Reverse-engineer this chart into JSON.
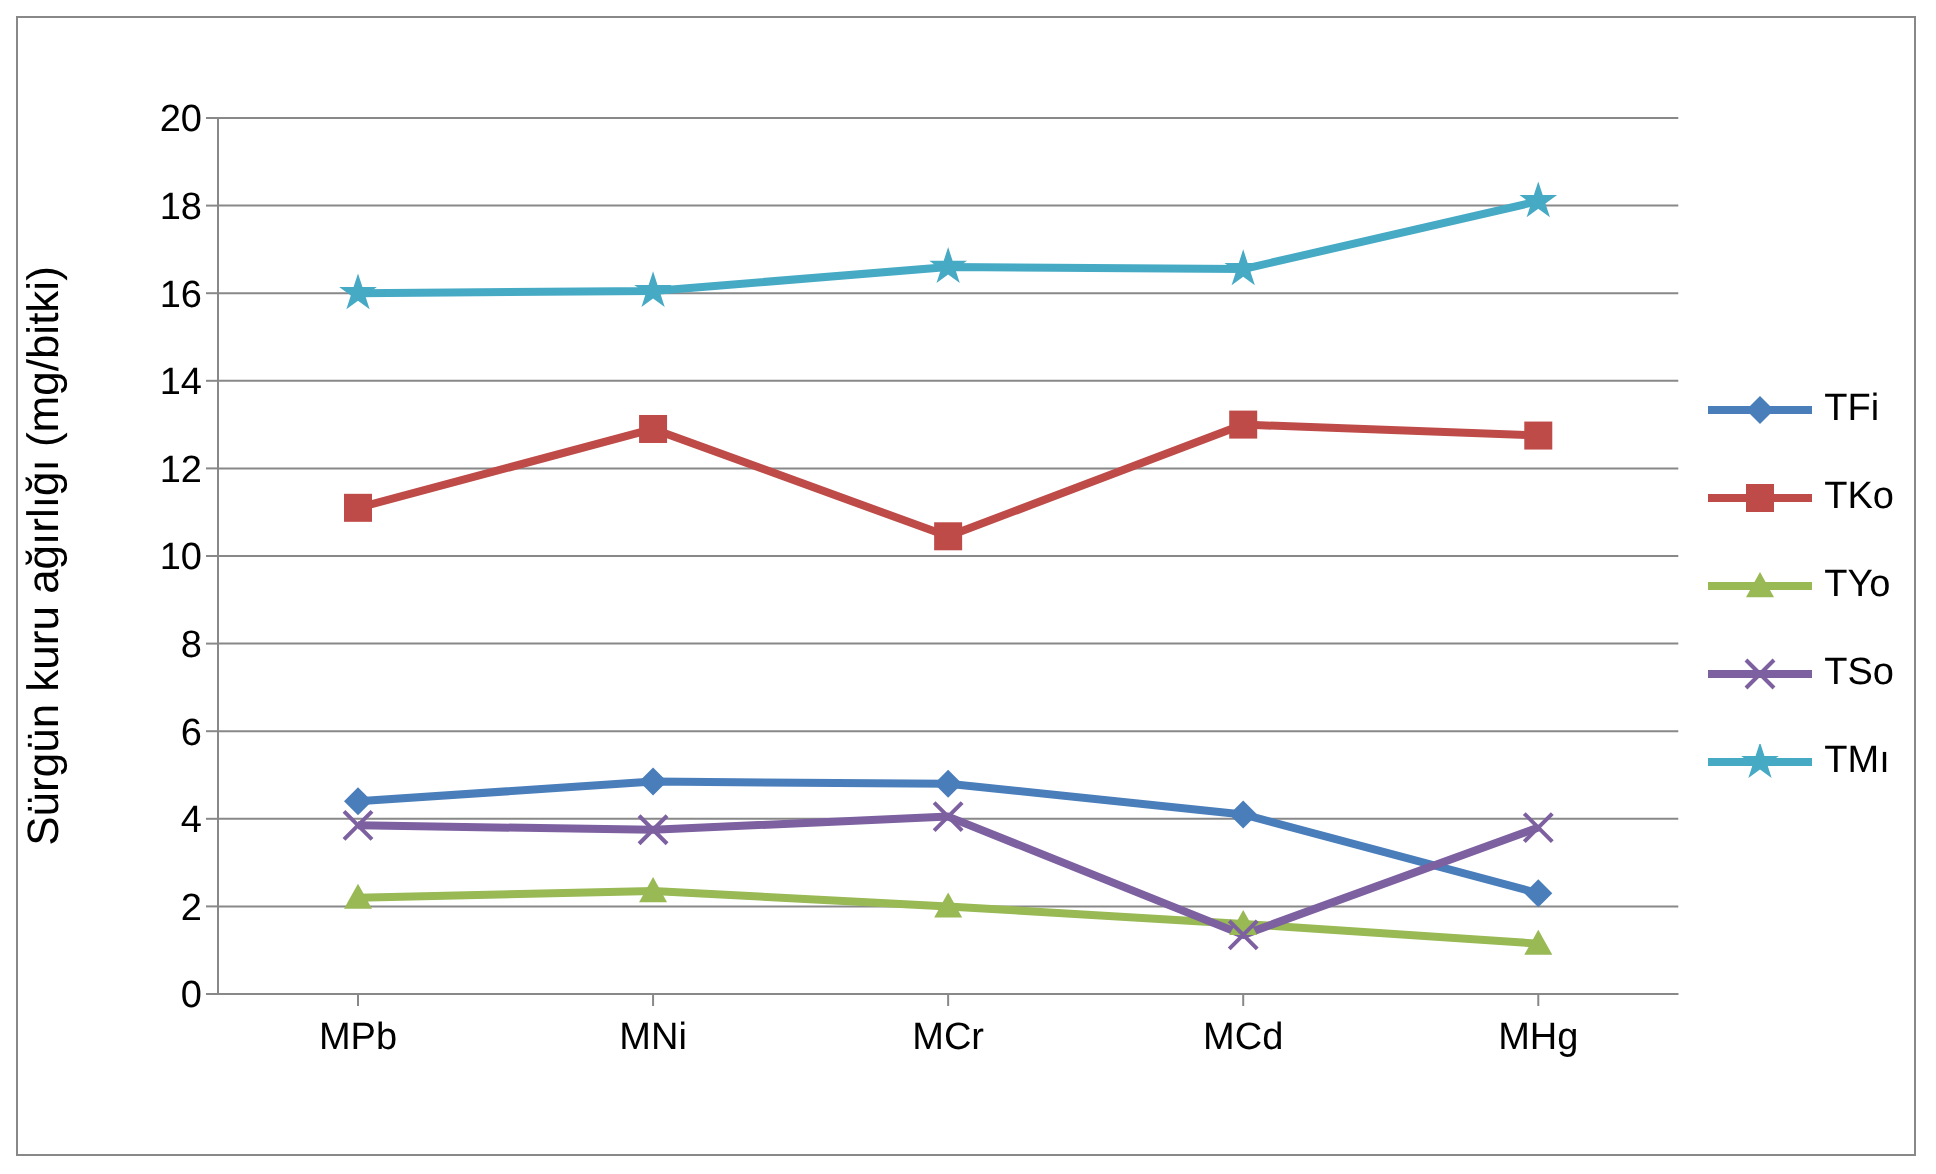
{
  "chart_data": {
    "type": "line",
    "ylabel": "Sürgün kuru ağırlığı (mg/bitki)",
    "categories": [
      "MPb",
      "MNi",
      "MCr",
      "MCd",
      "MHg"
    ],
    "ylim": [
      0,
      20
    ],
    "yticks": [
      0,
      2,
      4,
      6,
      8,
      10,
      12,
      14,
      16,
      18,
      20
    ],
    "grid": "y",
    "legend": "right",
    "line_style": "solid",
    "series": [
      {
        "name": "TFi",
        "color": "#4a7ebb",
        "marker": "diamond",
        "values": [
          4.4,
          4.85,
          4.8,
          4.1,
          2.3
        ]
      },
      {
        "name": "TKo",
        "color": "#be4b48",
        "marker": "square",
        "values": [
          11.1,
          12.9,
          10.45,
          13.0,
          12.75
        ]
      },
      {
        "name": "TYo",
        "color": "#98b954",
        "marker": "triangle",
        "values": [
          2.2,
          2.35,
          2.0,
          1.6,
          1.15
        ]
      },
      {
        "name": "TSo",
        "color": "#7d60a0",
        "marker": "cross",
        "values": [
          3.85,
          3.75,
          4.05,
          1.35,
          3.8
        ]
      },
      {
        "name": "TMı",
        "color": "#46aac5",
        "marker": "star",
        "values": [
          16.0,
          16.05,
          16.6,
          16.55,
          18.1
        ]
      }
    ]
  }
}
